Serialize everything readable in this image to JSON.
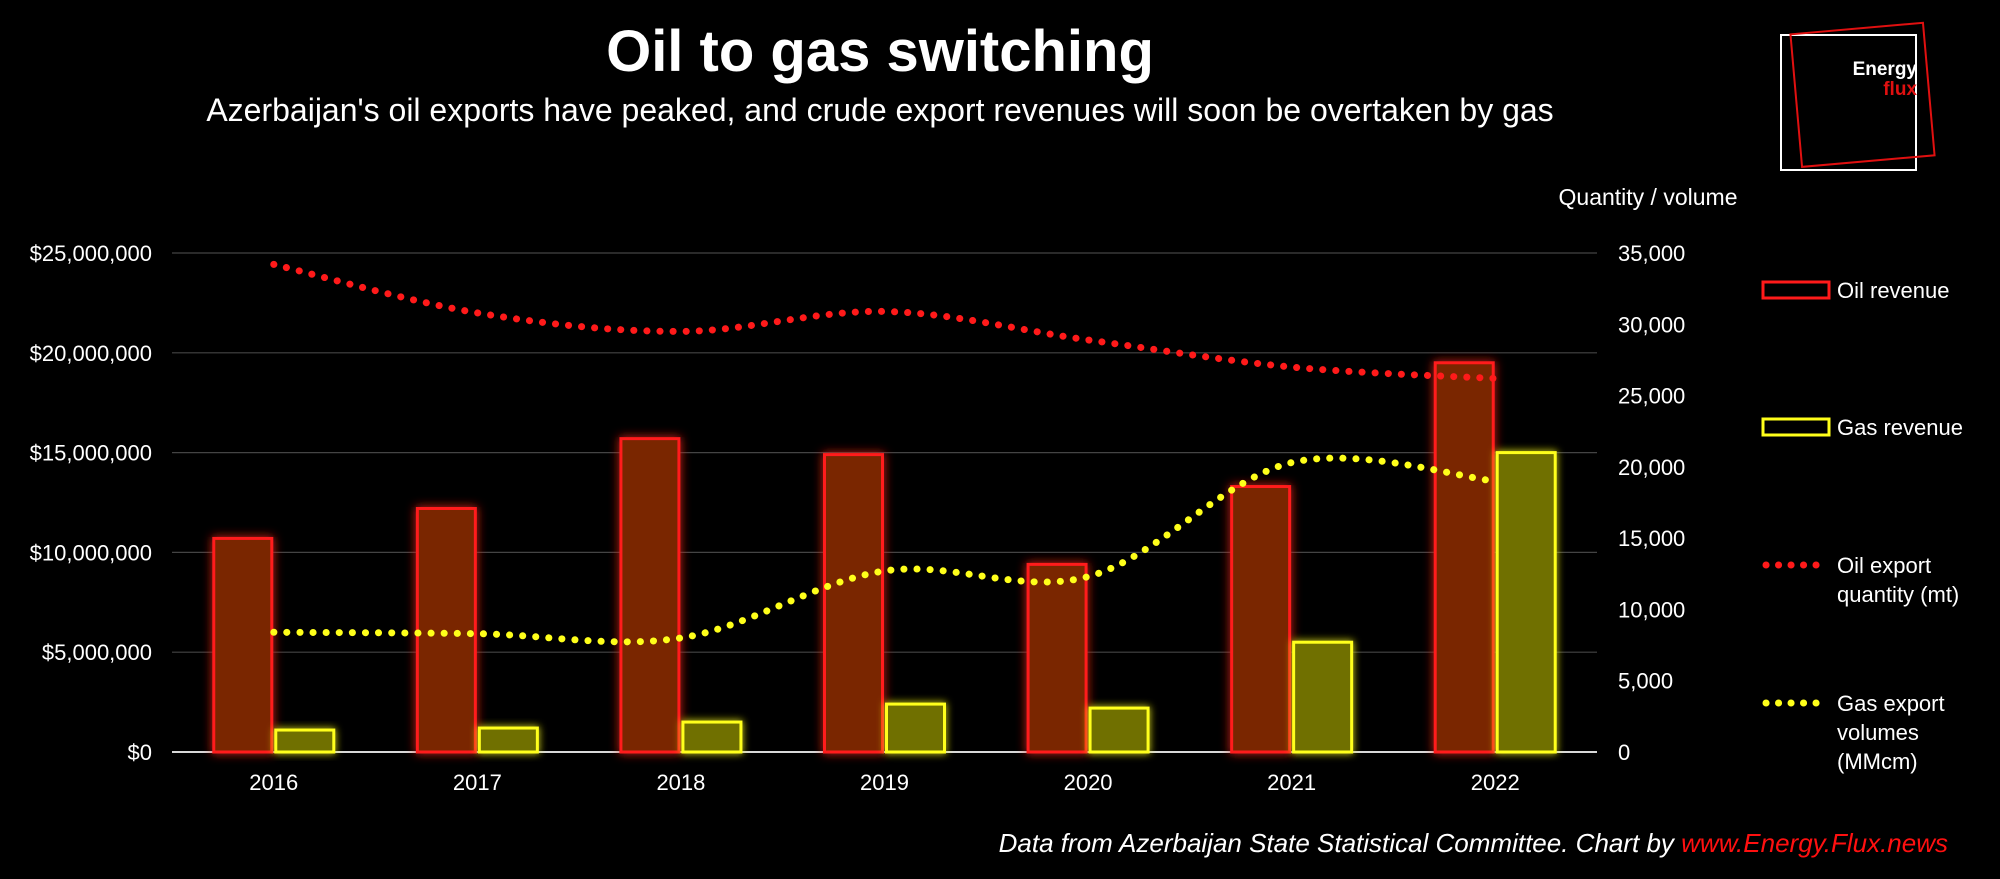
{
  "header": {
    "title": "Oil to gas switching",
    "subtitle": "Azerbaijan's oil exports have peaked, and crude export revenues will soon be overtaken by gas"
  },
  "logo": {
    "line1": "Energy",
    "line2": "flux"
  },
  "footer": {
    "source_text": "Data from Azerbaijan State Statistical Committee. Chart by ",
    "source_link": "www.Energy.Flux.news"
  },
  "colors": {
    "background": "#000000",
    "oil": "#ff1a1a",
    "oil_fill": "#7a2605",
    "gas": "#ffff1a",
    "gas_fill": "#707000",
    "grid": "#444444",
    "text": "#ffffff",
    "accent": "#e01010"
  },
  "chart_data": {
    "type": "bar",
    "categories": [
      "2016",
      "2017",
      "2018",
      "2019",
      "2020",
      "2021",
      "2022"
    ],
    "y_left": {
      "ylim": [
        0,
        25000000
      ],
      "ticks": [
        0,
        5000000,
        10000000,
        15000000,
        20000000,
        25000000
      ],
      "tick_labels": [
        "$0",
        "$5,000,000",
        "$10,000,000",
        "$15,000,000",
        "$20,000,000",
        "$25,000,000"
      ]
    },
    "y_right": {
      "label": "Quantity / volume",
      "ylim": [
        0,
        35000
      ],
      "ticks": [
        0,
        5000,
        10000,
        15000,
        20000,
        25000,
        30000,
        35000
      ],
      "tick_labels": [
        "0",
        "5,000",
        "10,000",
        "15,000",
        "20,000",
        "25,000",
        "30,000",
        "35,000"
      ]
    },
    "series": [
      {
        "name": "Oil revenue",
        "kind": "bar",
        "axis": "left",
        "values": [
          10700000,
          12200000,
          15700000,
          14900000,
          9400000,
          13300000,
          19500000
        ]
      },
      {
        "name": "Gas revenue",
        "kind": "bar",
        "axis": "left",
        "values": [
          1100000,
          1200000,
          1500000,
          2400000,
          2200000,
          5500000,
          15000000
        ]
      },
      {
        "name": "Oil export quantity (mt)",
        "kind": "dotted-line",
        "axis": "right",
        "values": [
          34200,
          30800,
          29500,
          30900,
          28900,
          27000,
          26200
        ]
      },
      {
        "name": "Gas export volumes (MMcm)",
        "kind": "dotted-line",
        "axis": "right",
        "values": [
          8400,
          8300,
          8000,
          12700,
          12300,
          20300,
          19000
        ]
      }
    ],
    "grid": true,
    "legend_position": "right"
  },
  "legend": [
    {
      "lines": [
        "Oil revenue"
      ],
      "symbol": "oil-box"
    },
    {
      "lines": [
        "Gas revenue"
      ],
      "symbol": "gas-box"
    },
    {
      "lines": [
        "Oil export",
        "quantity (mt)"
      ],
      "symbol": "oil-dots"
    },
    {
      "lines": [
        "Gas export",
        "volumes",
        "(MMcm)"
      ],
      "symbol": "gas-dots"
    }
  ]
}
